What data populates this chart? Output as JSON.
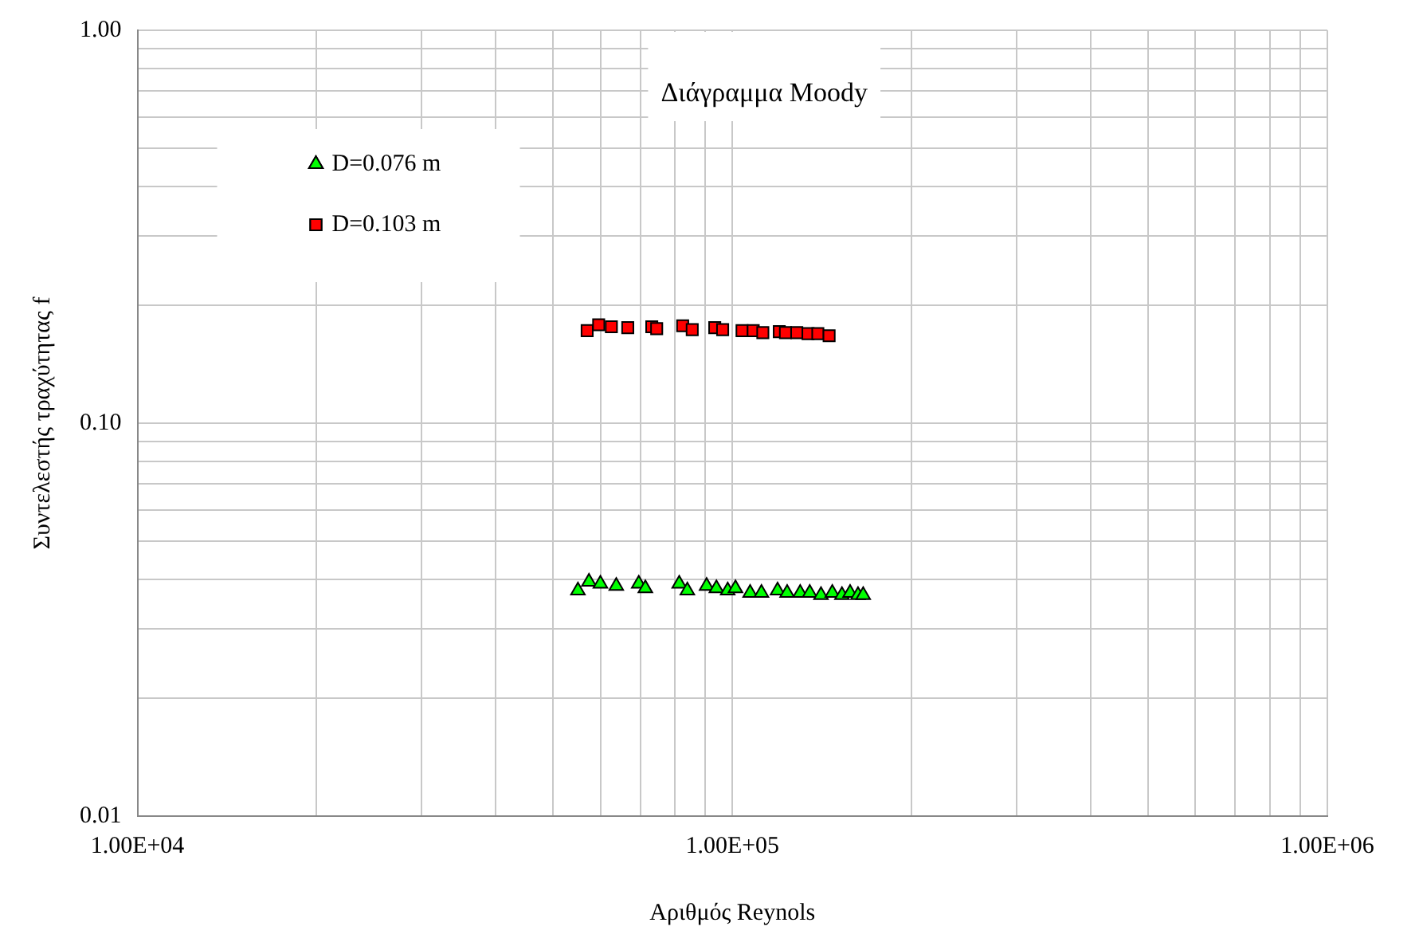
{
  "chart_data": {
    "type": "scatter",
    "title": "Διάγραμμα Moody",
    "xlabel": "Αριθμός Reynols",
    "ylabel": "Συντελεστής τραχύτητας f",
    "log": "xy",
    "grid": true,
    "legend": "top left",
    "xlim": [
      10000,
      1000000
    ],
    "ylim": [
      0.01,
      1
    ],
    "xticks": [
      {
        "value": 10000,
        "label": "1.00E+04"
      },
      {
        "value": 20000,
        "label": null
      },
      {
        "value": 30000,
        "label": null
      },
      {
        "value": 40000,
        "label": null
      },
      {
        "value": 50000,
        "label": null
      },
      {
        "value": 60000,
        "label": null
      },
      {
        "value": 70000,
        "label": null
      },
      {
        "value": 80000,
        "label": null
      },
      {
        "value": 90000,
        "label": null
      },
      {
        "value": 100000,
        "label": "1.00E+05"
      },
      {
        "value": 200000,
        "label": null
      },
      {
        "value": 300000,
        "label": null
      },
      {
        "value": 400000,
        "label": null
      },
      {
        "value": 500000,
        "label": null
      },
      {
        "value": 600000,
        "label": null
      },
      {
        "value": 700000,
        "label": null
      },
      {
        "value": 800000,
        "label": null
      },
      {
        "value": 900000,
        "label": null
      },
      {
        "value": 1000000,
        "label": "1.00E+06"
      }
    ],
    "yticks": [
      {
        "value": 0.01,
        "label": "0.01"
      },
      {
        "value": 0.02,
        "label": null
      },
      {
        "value": 0.03,
        "label": null
      },
      {
        "value": 0.04,
        "label": null
      },
      {
        "value": 0.05,
        "label": null
      },
      {
        "value": 0.06,
        "label": null
      },
      {
        "value": 0.07,
        "label": null
      },
      {
        "value": 0.08,
        "label": null
      },
      {
        "value": 0.09,
        "label": null
      },
      {
        "value": 0.1,
        "label": "0.10"
      },
      {
        "value": 0.2,
        "label": null
      },
      {
        "value": 0.3,
        "label": null
      },
      {
        "value": 0.4,
        "label": null
      },
      {
        "value": 0.5,
        "label": null
      },
      {
        "value": 0.6,
        "label": null
      },
      {
        "value": 0.7,
        "label": null
      },
      {
        "value": 0.8,
        "label": null
      },
      {
        "value": 0.9,
        "label": null
      },
      {
        "value": 1,
        "label": "1.00"
      }
    ],
    "series": [
      {
        "name": "D=0.076 m",
        "color": "#00ff00",
        "marker": "triangle",
        "x": [
          55000,
          57400,
          60000,
          63800,
          69600,
          71400,
          81400,
          84000,
          90500,
          94000,
          98200,
          101200,
          107100,
          111900,
          119100,
          123600,
          130000,
          134900,
          140900,
          147200,
          152800,
          157700,
          162600,
          165900
        ],
        "values": [
          0.0375,
          0.0395,
          0.039,
          0.0385,
          0.039,
          0.038,
          0.039,
          0.0375,
          0.0385,
          0.038,
          0.0375,
          0.038,
          0.037,
          0.037,
          0.0375,
          0.037,
          0.037,
          0.037,
          0.0365,
          0.037,
          0.0365,
          0.037,
          0.0365,
          0.0365
        ]
      },
      {
        "name": "D=0.103 m",
        "color": "#ff0000",
        "marker": "square",
        "x": [
          57000,
          59600,
          62600,
          66700,
          73200,
          74600,
          82500,
          85600,
          93400,
          96300,
          103800,
          108400,
          112500,
          119900,
          122800,
          128300,
          134000,
          139200,
          145400
        ],
        "values": [
          0.172,
          0.178,
          0.176,
          0.175,
          0.176,
          0.174,
          0.177,
          0.173,
          0.175,
          0.173,
          0.172,
          0.172,
          0.17,
          0.171,
          0.17,
          0.17,
          0.169,
          0.169,
          0.167
        ]
      }
    ]
  }
}
